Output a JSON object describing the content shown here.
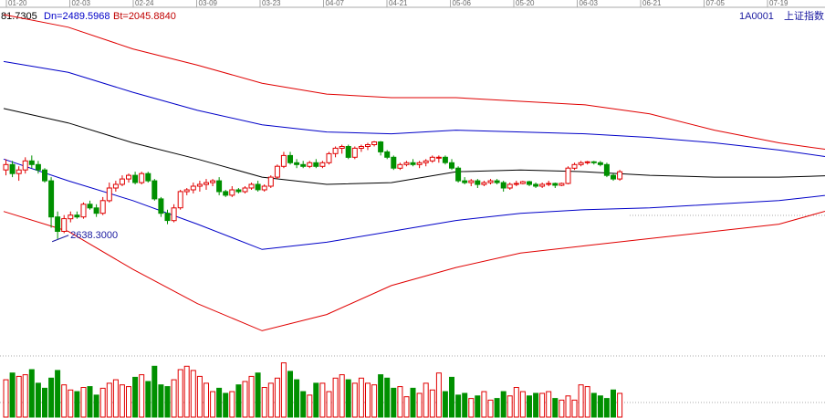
{
  "header": {
    "readout_prefix": "81.7305",
    "readout_dn": "Dn=2489.5968",
    "readout_bt": "Bt=2045.8840",
    "symbol_code": "1A0001",
    "symbol_name": "上证指数"
  },
  "colors": {
    "up": "#e00000",
    "down": "#009000",
    "outer_band": "#e00000",
    "inner_band": "#0000c8",
    "mid_band": "#000000",
    "grid": "#aaaaaa",
    "readout_prefix": "#000000",
    "readout_dn": "#0000c8",
    "readout_bt": "#c00000",
    "symbol": "#1a1aa0"
  },
  "chart_data": {
    "type": "candlestick",
    "date_axis_labels": [
      "01-20",
      "02-03",
      "02-24",
      "03-09",
      "03-23",
      "04-07",
      "04-21",
      "05-06",
      "05-20",
      "06-03",
      "06-21",
      "07-05",
      "07-19"
    ],
    "price_range": [
      1950,
      3900
    ],
    "annotation_low": {
      "label": "2638.3000",
      "index": 8,
      "value": 2638.3
    },
    "candles": [
      [
        3020,
        3080,
        2990,
        3050
      ],
      [
        3050,
        3070,
        2980,
        3000
      ],
      [
        3000,
        3040,
        2960,
        3020
      ],
      [
        3020,
        3090,
        3000,
        3070
      ],
      [
        3070,
        3100,
        3030,
        3050
      ],
      [
        3050,
        3070,
        3000,
        3020
      ],
      [
        3020,
        3030,
        2950,
        2960
      ],
      [
        2960,
        2980,
        2700,
        2760
      ],
      [
        2760,
        2790,
        2638,
        2680
      ],
      [
        2680,
        2770,
        2670,
        2750
      ],
      [
        2750,
        2790,
        2730,
        2770
      ],
      [
        2770,
        2790,
        2750,
        2760
      ],
      [
        2760,
        2840,
        2750,
        2830
      ],
      [
        2830,
        2850,
        2800,
        2810
      ],
      [
        2810,
        2830,
        2760,
        2780
      ],
      [
        2780,
        2870,
        2770,
        2850
      ],
      [
        2850,
        2950,
        2840,
        2920
      ],
      [
        2920,
        2960,
        2900,
        2940
      ],
      [
        2940,
        2990,
        2930,
        2970
      ],
      [
        2970,
        3000,
        2950,
        2990
      ],
      [
        2990,
        3010,
        2940,
        2950
      ],
      [
        2950,
        3010,
        2940,
        3000
      ],
      [
        3000,
        3010,
        2950,
        2960
      ],
      [
        2960,
        2970,
        2850,
        2860
      ],
      [
        2860,
        2870,
        2760,
        2780
      ],
      [
        2780,
        2800,
        2720,
        2740
      ],
      [
        2740,
        2830,
        2730,
        2810
      ],
      [
        2810,
        2910,
        2800,
        2900
      ],
      [
        2900,
        2920,
        2880,
        2910
      ],
      [
        2910,
        2950,
        2890,
        2930
      ],
      [
        2930,
        2960,
        2900,
        2940
      ],
      [
        2940,
        2970,
        2910,
        2950
      ],
      [
        2950,
        2970,
        2930,
        2960
      ],
      [
        2960,
        2980,
        2880,
        2900
      ],
      [
        2900,
        2910,
        2870,
        2880
      ],
      [
        2880,
        2930,
        2870,
        2910
      ],
      [
        2910,
        2920,
        2890,
        2900
      ],
      [
        2900,
        2930,
        2890,
        2920
      ],
      [
        2920,
        2950,
        2910,
        2940
      ],
      [
        2940,
        2960,
        2900,
        2910
      ],
      [
        2910,
        2940,
        2900,
        2930
      ],
      [
        2930,
        2990,
        2920,
        2980
      ],
      [
        2980,
        3050,
        2970,
        3040
      ],
      [
        3040,
        3120,
        3030,
        3100
      ],
      [
        3100,
        3120,
        3050,
        3060
      ],
      [
        3060,
        3080,
        3030,
        3050
      ],
      [
        3050,
        3070,
        3030,
        3040
      ],
      [
        3040,
        3070,
        3030,
        3060
      ],
      [
        3060,
        3080,
        3030,
        3040
      ],
      [
        3040,
        3070,
        3030,
        3060
      ],
      [
        3060,
        3120,
        3050,
        3110
      ],
      [
        3110,
        3150,
        3090,
        3140
      ],
      [
        3140,
        3160,
        3110,
        3150
      ],
      [
        3150,
        3160,
        3080,
        3090
      ],
      [
        3090,
        3150,
        3080,
        3140
      ],
      [
        3140,
        3160,
        3120,
        3150
      ],
      [
        3150,
        3170,
        3130,
        3160
      ],
      [
        3160,
        3180,
        3150,
        3175
      ],
      [
        3175,
        3180,
        3100,
        3120
      ],
      [
        3120,
        3130,
        3080,
        3090
      ],
      [
        3090,
        3100,
        3020,
        3030
      ],
      [
        3030,
        3060,
        3020,
        3050
      ],
      [
        3050,
        3070,
        3040,
        3060
      ],
      [
        3060,
        3080,
        3040,
        3050
      ],
      [
        3050,
        3070,
        3030,
        3060
      ],
      [
        3060,
        3080,
        3040,
        3070
      ],
      [
        3070,
        3100,
        3060,
        3090
      ],
      [
        3090,
        3100,
        3060,
        3090
      ],
      [
        3090,
        3100,
        3050,
        3060
      ],
      [
        3060,
        3080,
        3020,
        3030
      ],
      [
        3030,
        3040,
        2950,
        2960
      ],
      [
        2960,
        2980,
        2940,
        2950
      ],
      [
        2950,
        2970,
        2930,
        2960
      ],
      [
        2960,
        2970,
        2920,
        2940
      ],
      [
        2940,
        2960,
        2930,
        2950
      ],
      [
        2950,
        2970,
        2940,
        2960
      ],
      [
        2960,
        2970,
        2940,
        2950
      ],
      [
        2950,
        2960,
        2900,
        2920
      ],
      [
        2920,
        2950,
        2910,
        2940
      ],
      [
        2940,
        2960,
        2930,
        2945
      ],
      [
        2945,
        2960,
        2940,
        2955
      ],
      [
        2955,
        2960,
        2930,
        2940
      ],
      [
        2940,
        2950,
        2920,
        2930
      ],
      [
        2930,
        2950,
        2920,
        2940
      ],
      [
        2940,
        2960,
        2930,
        2945
      ],
      [
        2945,
        2950,
        2920,
        2935
      ],
      [
        2935,
        2950,
        2930,
        2945
      ],
      [
        2945,
        3040,
        2940,
        3030
      ],
      [
        3030,
        3060,
        3020,
        3050
      ],
      [
        3050,
        3070,
        3040,
        3060
      ],
      [
        3060,
        3070,
        3050,
        3065
      ],
      [
        3065,
        3070,
        3050,
        3060
      ],
      [
        3060,
        3070,
        3040,
        3050
      ],
      [
        3050,
        3060,
        2980,
        2990
      ],
      [
        2990,
        3000,
        2960,
        2970
      ],
      [
        2970,
        3020,
        2960,
        3010
      ]
    ],
    "volumes": [
      44,
      52,
      48,
      50,
      56,
      40,
      34,
      46,
      55,
      38,
      32,
      30,
      35,
      36,
      26,
      34,
      40,
      44,
      38,
      36,
      47,
      50,
      42,
      60,
      38,
      36,
      44,
      56,
      60,
      55,
      48,
      40,
      30,
      34,
      28,
      30,
      38,
      42,
      48,
      52,
      35,
      40,
      46,
      64,
      54,
      44,
      30,
      26,
      40,
      40,
      30,
      46,
      50,
      44,
      40,
      46,
      40,
      38,
      50,
      46,
      34,
      36,
      24,
      34,
      28,
      40,
      32,
      52,
      30,
      47,
      26,
      28,
      22,
      25,
      30,
      20,
      22,
      30,
      25,
      35,
      30,
      25,
      28,
      28,
      30,
      22,
      20,
      25,
      20,
      38,
      36,
      28,
      25,
      22,
      32,
      28
    ],
    "volume_range": [
      0,
      70
    ],
    "bands": {
      "upper_outer": [
        [
          0,
          3880
        ],
        [
          10,
          3810
        ],
        [
          20,
          3690
        ],
        [
          30,
          3600
        ],
        [
          40,
          3500
        ],
        [
          50,
          3440
        ],
        [
          60,
          3420
        ],
        [
          70,
          3420
        ],
        [
          80,
          3400
        ],
        [
          90,
          3380
        ],
        [
          100,
          3330
        ],
        [
          110,
          3240
        ],
        [
          120,
          3170
        ],
        [
          130,
          3120
        ]
      ],
      "upper_inner": [
        [
          0,
          3620
        ],
        [
          10,
          3560
        ],
        [
          20,
          3450
        ],
        [
          30,
          3350
        ],
        [
          40,
          3270
        ],
        [
          50,
          3230
        ],
        [
          60,
          3220
        ],
        [
          70,
          3240
        ],
        [
          80,
          3230
        ],
        [
          90,
          3220
        ],
        [
          100,
          3200
        ],
        [
          110,
          3170
        ],
        [
          120,
          3130
        ],
        [
          130,
          3080
        ]
      ],
      "middle": [
        [
          0,
          3360
        ],
        [
          10,
          3280
        ],
        [
          20,
          3170
        ],
        [
          30,
          3080
        ],
        [
          40,
          2980
        ],
        [
          50,
          2940
        ],
        [
          60,
          2950
        ],
        [
          70,
          3010
        ],
        [
          80,
          3020
        ],
        [
          90,
          3010
        ],
        [
          100,
          2990
        ],
        [
          110,
          2980
        ],
        [
          120,
          2980
        ],
        [
          130,
          2990
        ]
      ],
      "lower_inner": [
        [
          0,
          3080
        ],
        [
          10,
          2960
        ],
        [
          20,
          2850
        ],
        [
          30,
          2720
        ],
        [
          40,
          2580
        ],
        [
          50,
          2620
        ],
        [
          60,
          2680
        ],
        [
          70,
          2740
        ],
        [
          80,
          2780
        ],
        [
          90,
          2800
        ],
        [
          100,
          2810
        ],
        [
          110,
          2830
        ],
        [
          120,
          2850
        ],
        [
          130,
          2890
        ]
      ],
      "lower_outer": [
        [
          0,
          2790
        ],
        [
          10,
          2680
        ],
        [
          20,
          2470
        ],
        [
          30,
          2280
        ],
        [
          40,
          2130
        ],
        [
          50,
          2220
        ],
        [
          60,
          2380
        ],
        [
          70,
          2480
        ],
        [
          80,
          2560
        ],
        [
          90,
          2600
        ],
        [
          100,
          2640
        ],
        [
          110,
          2680
        ],
        [
          120,
          2720
        ],
        [
          130,
          2820
        ]
      ]
    }
  }
}
